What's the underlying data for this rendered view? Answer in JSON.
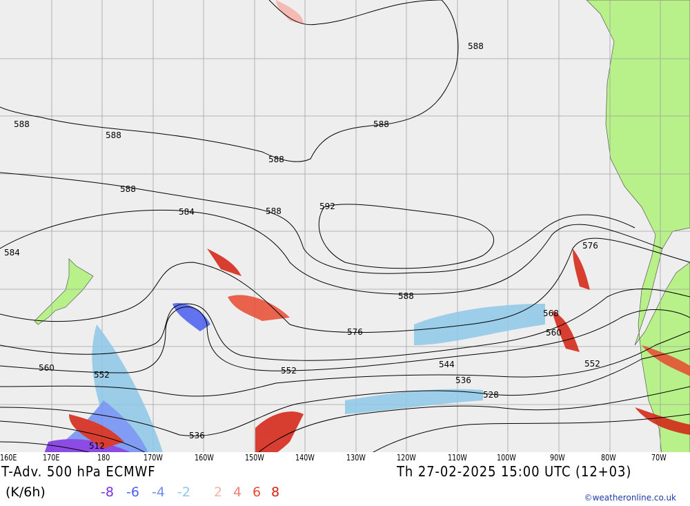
{
  "map": {
    "title_left": "T-Adv. 500 hPa  ECMWF",
    "title_right": "Th 27-02-2025 15:00 UTC (12+03)",
    "units": "(K/6h)",
    "credit": "©weatheronline.co.uk",
    "lon_labels": [
      "160E",
      "170E",
      "180",
      "170W",
      "160W",
      "150W",
      "140W",
      "130W",
      "120W",
      "110W",
      "100W",
      "90W",
      "80W",
      "70W"
    ],
    "legend": [
      {
        "value": "-8",
        "color": "#7b2fe0"
      },
      {
        "value": "-6",
        "color": "#4a5ef0"
      },
      {
        "value": "-4",
        "color": "#6f8ef5"
      },
      {
        "value": "-2",
        "color": "#8ec8e8"
      },
      {
        "value": "2",
        "color": "#f5b0a8"
      },
      {
        "value": "4",
        "color": "#f08070"
      },
      {
        "value": "6",
        "color": "#e84a30"
      },
      {
        "value": "8",
        "color": "#d42010"
      }
    ],
    "contour_labels": [
      "588",
      "588",
      "588",
      "588",
      "588",
      "588",
      "588",
      "592",
      "584",
      "584",
      "576",
      "576",
      "588",
      "568",
      "560",
      "560",
      "552",
      "552",
      "552",
      "544",
      "536",
      "536",
      "528",
      "512"
    ],
    "colors": {
      "ocean": "#eeeeee",
      "land": "#b8f08a",
      "grid": "#a0a0a0"
    }
  }
}
